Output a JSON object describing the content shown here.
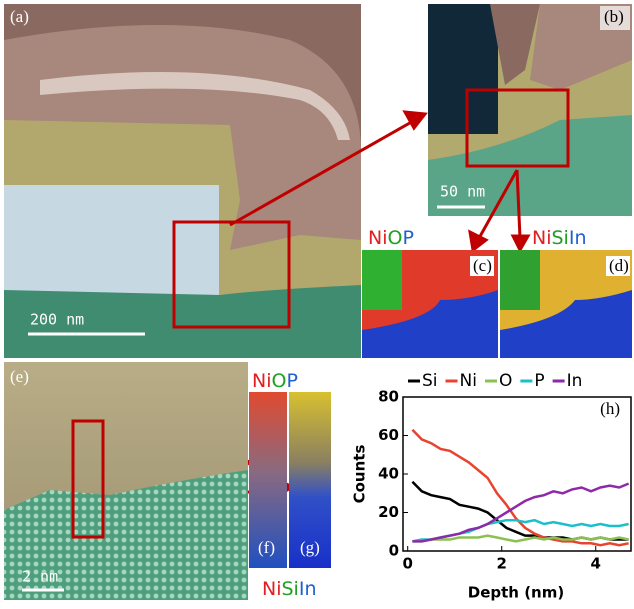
{
  "panels": {
    "a": {
      "label": "(a)",
      "scale": "200 nm"
    },
    "b": {
      "label": "(b)",
      "scale": "50 nm"
    },
    "c": {
      "label": "(c)"
    },
    "d": {
      "label": "(d)"
    },
    "e": {
      "label": "(e)",
      "scale": "2 nm"
    },
    "f": {
      "label": "(f)"
    },
    "g": {
      "label": "(g)"
    }
  },
  "maps": {
    "niop_top": [
      "Ni",
      "O",
      "P"
    ],
    "nisiin_top": [
      "Ni",
      "Si",
      "In"
    ],
    "niop_side": [
      "Ni",
      "O",
      "P"
    ],
    "nisiin_bottom": [
      "Ni",
      "Si",
      "In"
    ]
  },
  "chart_data": {
    "type": "line",
    "panel_label": "(h)",
    "x_label": "Depth (nm)",
    "y_label": "Counts",
    "x": [
      0.1,
      0.3,
      0.5,
      0.7,
      0.9,
      1.1,
      1.3,
      1.5,
      1.7,
      1.9,
      2.1,
      2.3,
      2.5,
      2.7,
      2.9,
      3.1,
      3.3,
      3.5,
      3.7,
      3.9,
      4.1,
      4.3,
      4.5,
      4.7
    ],
    "xlim": [
      -0.1,
      4.75
    ],
    "xticks": [
      0,
      2,
      4
    ],
    "ylim": [
      0,
      80
    ],
    "yticks": [
      0,
      20,
      40,
      60,
      80
    ],
    "legend": "top",
    "series": [
      {
        "name": "Si",
        "color": "#000000",
        "values": [
          36,
          31,
          29,
          28,
          27,
          24,
          23,
          22,
          20,
          16,
          12,
          10,
          8,
          8,
          7,
          7,
          7,
          6,
          7,
          6,
          7,
          6,
          6,
          6
        ]
      },
      {
        "name": "Ni",
        "color": "#e8432f",
        "values": [
          63,
          58,
          56,
          53,
          52,
          49,
          46,
          42,
          38,
          30,
          24,
          17,
          12,
          9,
          7,
          6,
          5,
          5,
          4,
          4,
          3,
          4,
          3,
          4
        ]
      },
      {
        "name": "O",
        "color": "#8cc152",
        "values": [
          5,
          5,
          6,
          6,
          6,
          7,
          7,
          7,
          8,
          7,
          6,
          5,
          6,
          7,
          6,
          7,
          6,
          6,
          7,
          6,
          7,
          6,
          7,
          6
        ]
      },
      {
        "name": "P",
        "color": "#1bbfc9",
        "values": [
          5,
          6,
          6,
          7,
          8,
          9,
          10,
          12,
          14,
          15,
          16,
          16,
          15,
          16,
          14,
          15,
          14,
          13,
          14,
          13,
          14,
          13,
          13,
          14
        ]
      },
      {
        "name": "In",
        "color": "#8e2aa8",
        "values": [
          5,
          5,
          6,
          7,
          8,
          9,
          11,
          12,
          14,
          17,
          20,
          23,
          26,
          28,
          29,
          31,
          30,
          32,
          33,
          31,
          33,
          34,
          33,
          35
        ]
      }
    ]
  }
}
